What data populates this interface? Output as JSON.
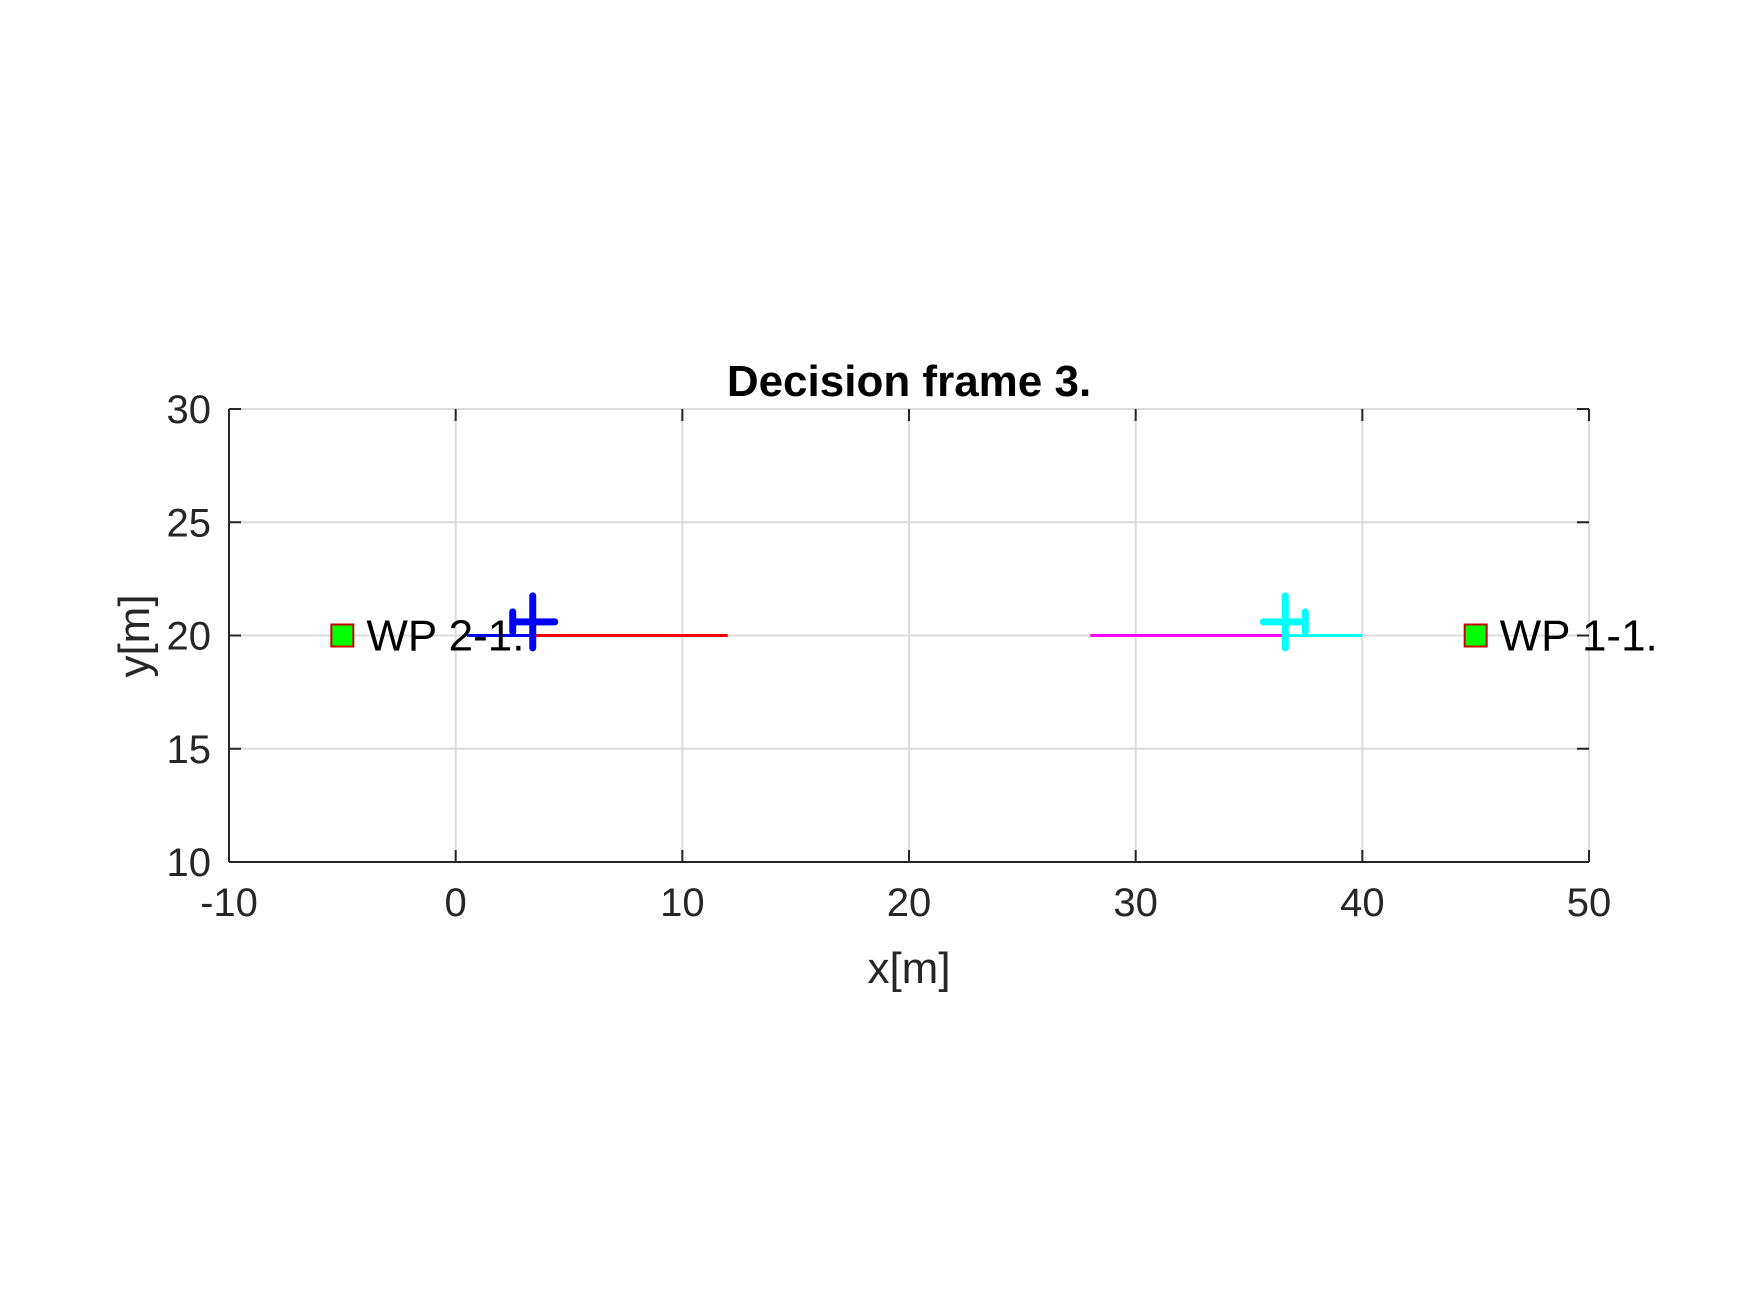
{
  "chart_data": {
    "type": "line",
    "title": "Decision frame 3.",
    "xlabel": "x[m]",
    "ylabel": "y[m]",
    "xlim": [
      -10,
      50
    ],
    "ylim": [
      10,
      30
    ],
    "xticks": [
      -10,
      0,
      10,
      20,
      30,
      40,
      50
    ],
    "yticks": [
      10,
      15,
      20,
      25,
      30
    ],
    "xtick_labels": [
      "-10",
      "0",
      "10",
      "20",
      "30",
      "40",
      "50"
    ],
    "ytick_labels": [
      "10",
      "15",
      "20",
      "25",
      "30"
    ],
    "grid": true,
    "series": [
      {
        "color": "#ff0000",
        "x": [
          3.4,
          12
        ],
        "y": [
          20,
          20
        ]
      },
      {
        "color": "#0000ff",
        "x": [
          0.5,
          3.4
        ],
        "y": [
          20,
          20
        ]
      },
      {
        "color": "#ff00ff",
        "x": [
          28,
          36.6
        ],
        "y": [
          20,
          20
        ]
      },
      {
        "color": "#00ffff",
        "x": [
          36.6,
          40
        ],
        "y": [
          20,
          20
        ]
      }
    ],
    "aircraft": [
      {
        "x": 3.4,
        "y": 20.6,
        "heading": "east",
        "color": "#0000ff"
      },
      {
        "x": 36.6,
        "y": 20.6,
        "heading": "west",
        "color": "#00ffff"
      }
    ],
    "waypoints": [
      {
        "x": -5,
        "y": 20,
        "label": "WP 2-1.",
        "fill": "#00ff00",
        "edge": "#cc0000"
      },
      {
        "x": 45,
        "y": 20,
        "label": "WP 1-1.",
        "fill": "#00ff00",
        "edge": "#cc0000"
      }
    ]
  }
}
